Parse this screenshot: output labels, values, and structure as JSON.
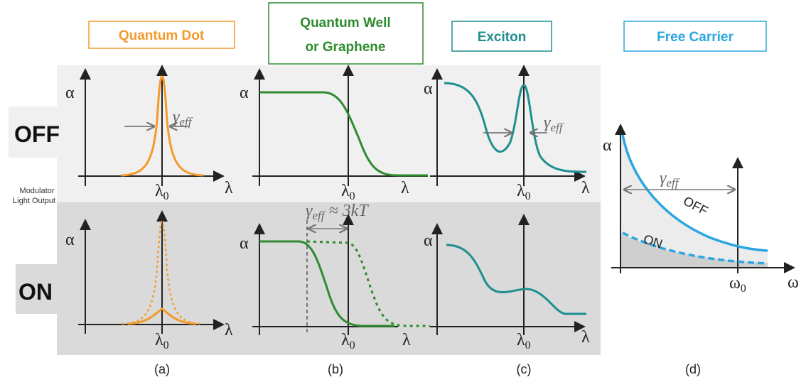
{
  "headers": [
    {
      "label": "Quantum Dot",
      "color": "#f39a2c"
    },
    {
      "label_line1": "Quantum Well",
      "label_line2": "or Graphene",
      "color": "#2e8b2e"
    },
    {
      "label": "Exciton",
      "color": "#1f8f8f"
    },
    {
      "label": "Free Carrier",
      "color": "#2ba6e0"
    }
  ],
  "rows": {
    "off": "OFF",
    "on": "ON"
  },
  "side_label": {
    "line1": "Modulator",
    "line2": "Light Output"
  },
  "symbols": {
    "alpha": "α",
    "lambda": "λ",
    "lambda0": "λ",
    "sub0": "0",
    "omega": "ω",
    "omega0": "ω",
    "gamma": "γ",
    "eff": "eff",
    "approx": " ≈ 3kT"
  },
  "panel_d": {
    "off_label": "OFF",
    "on_label": "ON"
  },
  "captions": [
    "(a)",
    "(b)",
    "(c)",
    "(d)"
  ],
  "colors": {
    "off_bg": "#f0f0f0",
    "on_bg": "#dadada"
  }
}
